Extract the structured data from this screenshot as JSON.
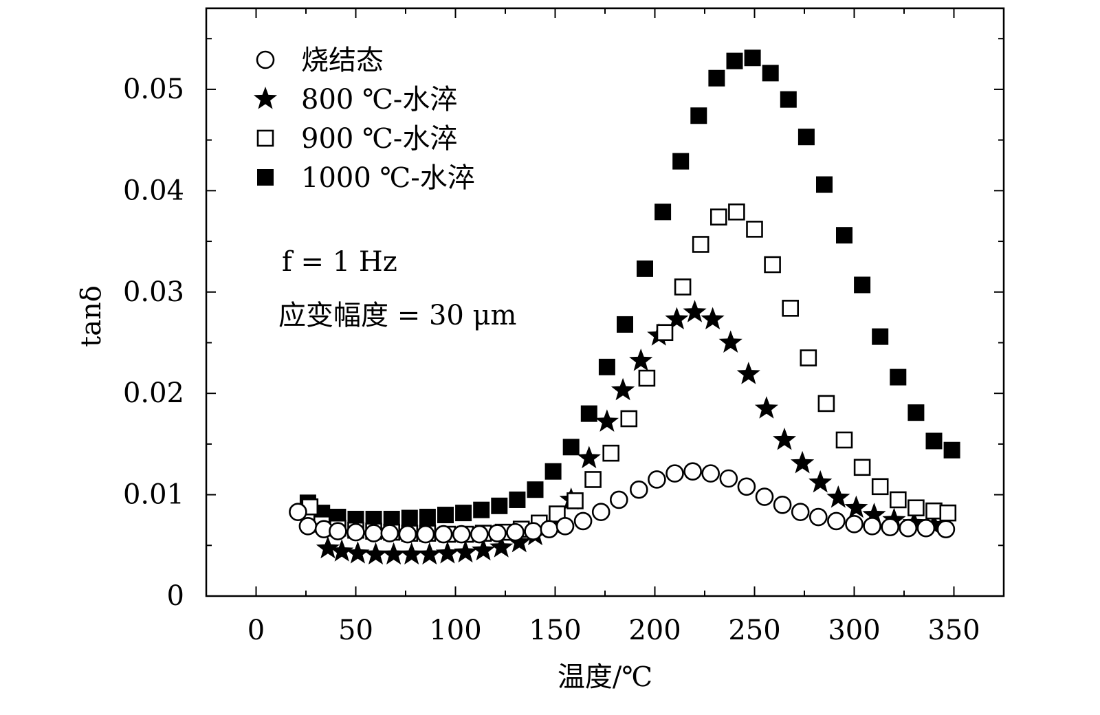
{
  "chart_data": {
    "type": "scatter",
    "xlabel": "温度/℃",
    "ylabel": "tanδ",
    "xlim": [
      -25,
      375
    ],
    "ylim": [
      0,
      0.058
    ],
    "xticks": [
      0,
      50,
      100,
      150,
      200,
      250,
      300,
      350
    ],
    "yticks": [
      0,
      0.01,
      0.02,
      0.03,
      0.04,
      0.05
    ],
    "xtick_labels": [
      "0",
      "50",
      "100",
      "150",
      "200",
      "250",
      "300",
      "350"
    ],
    "ytick_labels": [
      "0",
      "0.01",
      "0.02",
      "0.03",
      "0.04",
      "0.05"
    ],
    "legend_position": "top-left",
    "grid": false,
    "annotations": [
      "f = 1 Hz",
      "应变幅度 = 30 μm"
    ],
    "series": [
      {
        "name": "烧结态",
        "marker": "open-circle",
        "x": [
          21,
          26,
          34,
          41,
          50,
          59,
          67,
          76,
          85,
          94,
          103,
          112,
          121,
          130,
          139,
          147,
          155,
          164,
          173,
          182,
          192,
          201,
          210,
          219,
          228,
          237,
          246,
          255,
          264,
          273,
          282,
          291,
          300,
          309,
          318,
          327,
          336,
          346
        ],
        "y": [
          0.0083,
          0.0069,
          0.0066,
          0.0064,
          0.0063,
          0.0062,
          0.0062,
          0.0061,
          0.0061,
          0.0061,
          0.0061,
          0.0061,
          0.0062,
          0.0063,
          0.0064,
          0.0066,
          0.0069,
          0.0074,
          0.0083,
          0.0095,
          0.0105,
          0.0115,
          0.0121,
          0.0123,
          0.0121,
          0.0116,
          0.0108,
          0.0098,
          0.009,
          0.0083,
          0.0078,
          0.0074,
          0.0071,
          0.0069,
          0.0068,
          0.0067,
          0.0067,
          0.0066
        ]
      },
      {
        "name": "800 ℃-水淬",
        "marker": "filled-star",
        "x": [
          36,
          43,
          51,
          60,
          69,
          78,
          87,
          96,
          105,
          114,
          123,
          132,
          140,
          149,
          158,
          167,
          176,
          184,
          193,
          202,
          211,
          220,
          229,
          238,
          247,
          256,
          265,
          274,
          283,
          292,
          301,
          310,
          320,
          330,
          340
        ],
        "y": [
          0.0047,
          0.0044,
          0.0042,
          0.0041,
          0.0041,
          0.0041,
          0.0041,
          0.0042,
          0.0043,
          0.0045,
          0.0048,
          0.0053,
          0.006,
          0.0071,
          0.0095,
          0.0136,
          0.0172,
          0.0203,
          0.0232,
          0.0257,
          0.0273,
          0.028,
          0.0273,
          0.025,
          0.0219,
          0.0185,
          0.0154,
          0.0131,
          0.0112,
          0.0097,
          0.0087,
          0.008,
          0.0075,
          0.0072,
          0.007
        ]
      },
      {
        "name": "900 ℃-水淬",
        "marker": "open-square",
        "x": [
          27,
          33,
          41,
          50,
          59,
          68,
          77,
          86,
          96,
          105,
          114,
          124,
          133,
          142,
          151,
          160,
          169,
          178,
          187,
          196,
          205,
          214,
          223,
          232,
          241,
          250,
          259,
          268,
          277,
          286,
          295,
          304,
          313,
          322,
          331,
          340,
          347
        ],
        "y": [
          0.0088,
          0.0071,
          0.0067,
          0.0065,
          0.0064,
          0.0063,
          0.0062,
          0.0062,
          0.0061,
          0.0061,
          0.0062,
          0.0063,
          0.0066,
          0.0072,
          0.0081,
          0.0094,
          0.0115,
          0.0141,
          0.0175,
          0.0215,
          0.026,
          0.0305,
          0.0347,
          0.0374,
          0.0379,
          0.0362,
          0.0327,
          0.0284,
          0.0235,
          0.019,
          0.0154,
          0.0127,
          0.0108,
          0.0095,
          0.0087,
          0.0084,
          0.0082
        ]
      },
      {
        "name": "1000 ℃-水淬",
        "marker": "filled-square",
        "x": [
          26,
          33,
          41,
          50,
          59,
          68,
          77,
          86,
          95,
          104,
          113,
          122,
          131,
          140,
          149,
          158,
          167,
          176,
          185,
          195,
          204,
          213,
          222,
          231,
          240,
          249,
          258,
          267,
          276,
          285,
          295,
          304,
          313,
          322,
          331,
          340,
          349
        ],
        "y": [
          0.0092,
          0.0082,
          0.0078,
          0.0076,
          0.0076,
          0.0076,
          0.0077,
          0.0078,
          0.008,
          0.0082,
          0.0085,
          0.0089,
          0.0095,
          0.0105,
          0.0123,
          0.0147,
          0.018,
          0.0226,
          0.0268,
          0.0323,
          0.0379,
          0.0429,
          0.0474,
          0.0511,
          0.0528,
          0.0531,
          0.0516,
          0.049,
          0.0453,
          0.0406,
          0.0356,
          0.0307,
          0.0256,
          0.0216,
          0.0181,
          0.0153,
          0.0144
        ]
      }
    ]
  }
}
